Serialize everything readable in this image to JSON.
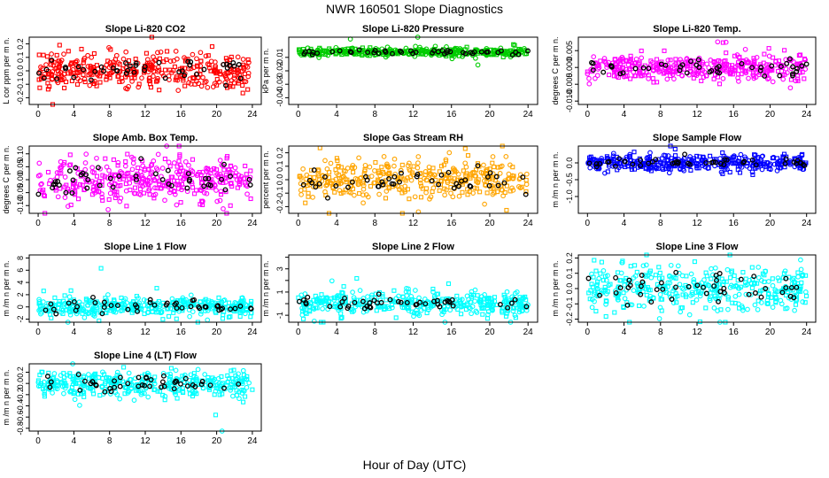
{
  "page_title": "NWR  160501  Slope Diagnostics",
  "x_caption": "Hour of Day (UTC)",
  "chart_data": [
    {
      "type": "scatter",
      "title": "Slope Li-820 CO2",
      "ylabel": "L cor ppm per m n.",
      "color": "#ff0000",
      "xlim": [
        -1,
        25
      ],
      "ylim": [
        -0.25,
        0.25
      ],
      "xticks": [
        0,
        4,
        8,
        12,
        16,
        20,
        24
      ],
      "yticks": [
        -0.2,
        -0.1,
        0.0,
        0.1,
        0.2
      ],
      "ytick_labels": [
        "-0.2",
        "-0.1",
        "0.0",
        "0.1",
        "0.2"
      ],
      "center": 0.0,
      "spread": 0.07
    },
    {
      "type": "scatter",
      "title": "Slope Li-820 Pressure",
      "ylabel": "kPa per m n.",
      "color": "#00cc00",
      "xlim": [
        -1,
        25
      ],
      "ylim": [
        -0.045,
        0.005
      ],
      "xticks": [
        0,
        4,
        8,
        12,
        16,
        20,
        24
      ],
      "yticks": [
        -0.04,
        -0.03,
        -0.02,
        -0.01
      ],
      "ytick_labels": [
        "-0.04",
        "-0.03",
        "-0.02",
        "-0.01"
      ],
      "center": -0.006,
      "spread": 0.0015
    },
    {
      "type": "scatter",
      "title": "Slope Li-820 Temp.",
      "ylabel": "degrees C per m n.",
      "color": "#ff00ff",
      "xlim": [
        -1,
        25
      ],
      "ylim": [
        -0.011,
        0.009
      ],
      "xticks": [
        0,
        4,
        8,
        12,
        16,
        20,
        24
      ],
      "yticks": [
        -0.01,
        -0.005,
        0.0,
        0.005
      ],
      "ytick_labels": [
        "-0.010",
        "-0.005",
        "0.000",
        "0.005"
      ],
      "center": 0.0,
      "spread": 0.002
    },
    {
      "type": "scatter",
      "title": "Slope Amb. Box Temp.",
      "ylabel": "degrees C per m n.",
      "color": "#ff00ff",
      "xlim": [
        -1,
        25
      ],
      "ylim": [
        -0.13,
        0.13
      ],
      "xticks": [
        0,
        4,
        8,
        12,
        16,
        20,
        24
      ],
      "yticks": [
        -0.1,
        -0.05,
        0.0,
        0.05,
        0.1
      ],
      "ytick_labels": [
        "-0.10",
        "-0.05",
        "0.00",
        "0.05",
        "0.10"
      ],
      "center": 0.0,
      "spread": 0.045
    },
    {
      "type": "scatter",
      "title": "Slope Gas Stream RH",
      "ylabel": "percent per m n.",
      "color": "#ffa500",
      "xlim": [
        -1,
        25
      ],
      "ylim": [
        -0.25,
        0.25
      ],
      "xticks": [
        0,
        4,
        8,
        12,
        16,
        20,
        24
      ],
      "yticks": [
        -0.2,
        -0.1,
        0.0,
        0.1,
        0.2
      ],
      "ytick_labels": [
        "-0.2",
        "-0.1",
        "0.0",
        "0.1",
        "0.2"
      ],
      "center": 0.0,
      "spread": 0.08
    },
    {
      "type": "scatter",
      "title": "Slope Sample Flow",
      "ylabel": "m /m n per m n.",
      "color": "#0000ff",
      "xlim": [
        -1,
        25
      ],
      "ylim": [
        -1.5,
        0.5
      ],
      "xticks": [
        0,
        4,
        8,
        12,
        16,
        20,
        24
      ],
      "yticks": [
        -1.0,
        -0.5,
        0.0
      ],
      "ytick_labels": [
        "-1.0",
        "-0.5",
        "0.0"
      ],
      "center": 0.0,
      "spread": 0.12
    },
    {
      "type": "scatter",
      "title": "Slope Line 1 Flow",
      "ylabel": "m /m n per m n.",
      "color": "#00ffff",
      "xlim": [
        -1,
        25
      ],
      "ylim": [
        -2.5,
        8.5
      ],
      "xticks": [
        0,
        4,
        8,
        12,
        16,
        20,
        24
      ],
      "yticks": [
        -2,
        0,
        2,
        4,
        6,
        8
      ],
      "ytick_labels": [
        "-2",
        "0",
        "2",
        "4",
        "6",
        "8"
      ],
      "center": 0.0,
      "spread": 0.8
    },
    {
      "type": "scatter",
      "title": "Slope Line 2 Flow",
      "ylabel": "m /m n per m n.",
      "color": "#00ffff",
      "xlim": [
        -1,
        25
      ],
      "ylim": [
        -1.6,
        4.2
      ],
      "xticks": [
        0,
        4,
        8,
        12,
        16,
        20,
        24
      ],
      "yticks": [
        -1,
        0,
        1,
        2,
        3,
        4
      ],
      "ytick_labels": [
        "-1",
        "",
        "1",
        "",
        "3",
        ""
      ],
      "center": 0.0,
      "spread": 0.5
    },
    {
      "type": "scatter",
      "title": "Slope Line 3 Flow",
      "ylabel": "m /m n per m n.",
      "color": "#00ffff",
      "xlim": [
        -1,
        25
      ],
      "ylim": [
        -0.22,
        0.22
      ],
      "xticks": [
        0,
        4,
        8,
        12,
        16,
        20,
        24
      ],
      "yticks": [
        -0.2,
        -0.1,
        0.0,
        0.1,
        0.2
      ],
      "ytick_labels": [
        "-0.2",
        "-0.1",
        "0.0",
        "0.1",
        "0.2"
      ],
      "center": 0.0,
      "spread": 0.08
    },
    {
      "type": "scatter",
      "title": "Slope Line 4 (LT) Flow",
      "ylabel": "m /m n per m n.",
      "color": "#00ffff",
      "xlim": [
        -1,
        25
      ],
      "ylim": [
        -0.85,
        0.35
      ],
      "xticks": [
        0,
        4,
        8,
        12,
        16,
        20,
        24
      ],
      "yticks": [
        -0.8,
        -0.6,
        -0.4,
        -0.2,
        0.0,
        0.2
      ],
      "ytick_labels": [
        "-0.8",
        "-0.6",
        "-0.4",
        "-0.2",
        "0.0",
        "0.2"
      ],
      "center": 0.0,
      "spread": 0.12
    }
  ]
}
